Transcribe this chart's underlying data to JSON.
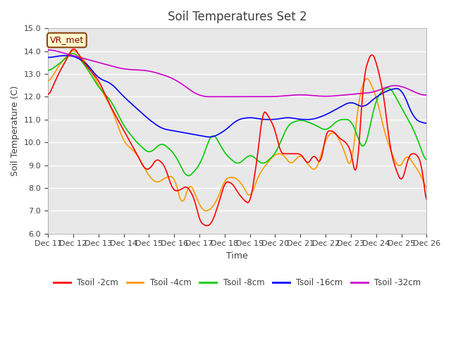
{
  "title": "Soil Temperatures Set 2",
  "xlabel": "Time",
  "ylabel": "Soil Temperature (C)",
  "ylim": [
    6.0,
    15.0
  ],
  "yticks": [
    6.0,
    7.0,
    8.0,
    9.0,
    10.0,
    11.0,
    12.0,
    13.0,
    14.0,
    15.0
  ],
  "xtick_labels": [
    "Dec 11",
    "Dec 12",
    "Dec 13",
    "Dec 14",
    "Dec 15",
    "Dec 16",
    "Dec 17",
    "Dec 18",
    "Dec 19",
    "Dec 20",
    "Dec 21",
    "Dec 22",
    "Dec 23",
    "Dec 24",
    "Dec 25",
    "Dec 26"
  ],
  "legend_labels": [
    "Tsoil -2cm",
    "Tsoil -4cm",
    "Tsoil -8cm",
    "Tsoil -16cm",
    "Tsoil -32cm"
  ],
  "line_colors": [
    "#ff0000",
    "#ff9900",
    "#00cc00",
    "#0000ff",
    "#cc00cc"
  ],
  "annotation_text": "VR_met",
  "bg_color": "#ffffff",
  "plot_bg_color": "#e8e8e8",
  "grid_color": "#ffffff",
  "title_color": "#404040",
  "axis_label_color": "#404040",
  "tick_color": "#404040",
  "n_points": 500
}
